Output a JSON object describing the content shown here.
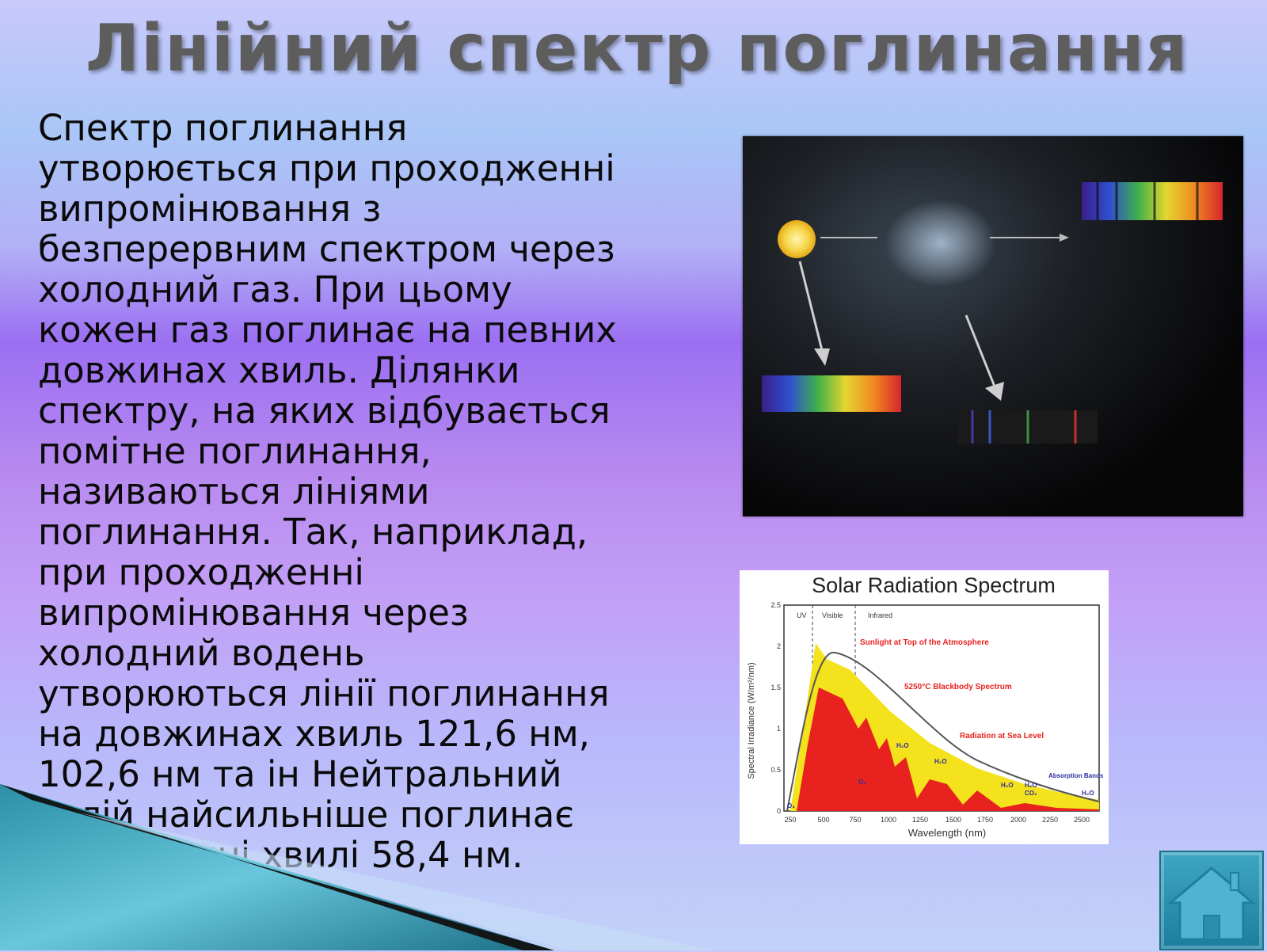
{
  "slide": {
    "title": "Лінійний спектр поглинання",
    "body": " Спектр поглинання\nутворюється при проходженні\nвипромінювання з\nбезперервним спектром через\nхолодний газ. При цьому\nкожен газ поглинає на певних\nдовжинах хвиль. Ділянки\nспектру, на яких відбувається\nпомітне поглинання,\nназиваються лініями\nпоглинання. Так, наприклад,\nпри проходженні\nвипромінювання через\nхолодний водень\nутворюються лінії поглинання\nна довжинах хвиль 121,6 нм,\n102,6 нм та ін Нейтральний\nгелій найсильніше поглинає\nна довжині хвилі 58,4 нм."
  },
  "chart_image": {
    "title": "Solar Radiation Spectrum",
    "ylabel": "Spectral Irradiance (W/m²/nm)",
    "xlabel": "Wavelength (nm)",
    "x_ticks": [
      "250",
      "500",
      "750",
      "1000",
      "1250",
      "1500",
      "1750",
      "2000",
      "2250",
      "2500"
    ],
    "y_ticks": [
      "0",
      "0.5",
      "1",
      "1.5",
      "2",
      "2.5"
    ],
    "regions": [
      "UV",
      "Visible",
      "Infrared"
    ],
    "annotations": [
      "Sunlight at Top of the Atmosphere",
      "5250°C Blackbody Spectrum",
      "Radiation at Sea Level",
      "Absorption Bands"
    ],
    "molecules": [
      "O₃",
      "H₂O",
      "O₂",
      "H₂O",
      "H₂O",
      "H₂O",
      "CO₂",
      "H₂O"
    ],
    "colors": {
      "top_atmosphere": "#f4e21c",
      "sea_level": "#e8231f",
      "blackbody": "#555555"
    }
  },
  "icons": {
    "home": "home-icon"
  }
}
